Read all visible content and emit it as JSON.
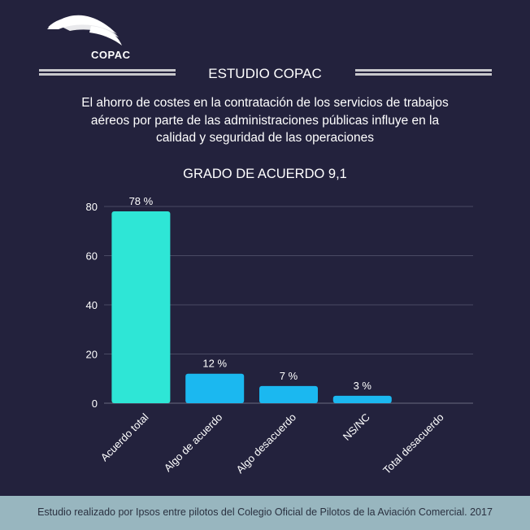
{
  "header": {
    "logo_text": "COPAC",
    "study_title": "ESTUDIO COPAC",
    "subtitle": "El ahorro de costes en la contratación de los servicios de trabajos aéreos por parte de las administraciones públicas influye en la calidad y seguridad de las operaciones"
  },
  "colors": {
    "background": "#23223d",
    "bar_primary": "#2ee6d6",
    "bar_secondary": "#1bb8f0",
    "footer_bg": "#98b6bf"
  },
  "chart_data": {
    "type": "bar",
    "title": "GRADO DE ACUERDO 9,1",
    "categories": [
      "Acuerdo total",
      "Algo de acuerdo",
      "Algo desacuerdo",
      "NS/NC",
      "Total desacuerdo"
    ],
    "values": [
      78,
      12,
      7,
      3,
      0
    ],
    "data_labels": [
      "78 %",
      "12 %",
      "7 %",
      "3 %",
      ""
    ],
    "yticks": [
      "0",
      "20",
      "40",
      "60",
      "80"
    ],
    "ylim": [
      0,
      80
    ],
    "grid": true,
    "legend": "none"
  },
  "footer": {
    "text": "Estudio realizado por Ipsos entre pilotos del Colegio Oficial de Pilotos de la Aviación Comercial. 2017"
  }
}
